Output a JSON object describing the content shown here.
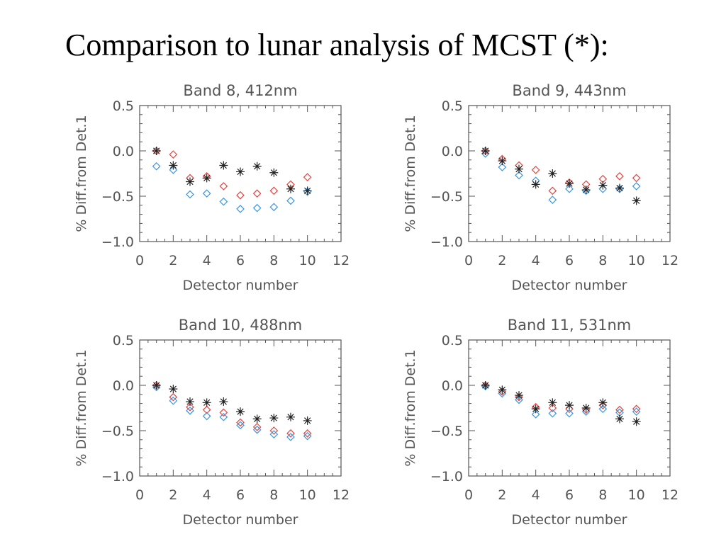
{
  "page": {
    "title": "Comparison to lunar analysis of MCST (*):"
  },
  "style": {
    "axis_color": "#555555",
    "red": "#e8433e",
    "blue": "#3a96e2",
    "star": "#222222"
  },
  "chart_data": [
    {
      "type": "scatter",
      "title": "Band 8, 412nm",
      "xlabel": "Detector number",
      "ylabel": "% Diff.from Det.1",
      "xlim": [
        0,
        12
      ],
      "ylim": [
        -1.0,
        0.5
      ],
      "xticks": [
        "0",
        "2",
        "4",
        "6",
        "8",
        "10",
        "12"
      ],
      "yticks": [
        "0.5",
        "0.0",
        "−0.5",
        "−1.0"
      ],
      "series": [
        {
          "marker": "diamond",
          "color": "#e8433e",
          "x": [
            1,
            2,
            3,
            4,
            5,
            6,
            7,
            8,
            9,
            10
          ],
          "y": [
            0.0,
            -0.04,
            -0.3,
            -0.28,
            -0.39,
            -0.49,
            -0.47,
            -0.44,
            -0.37,
            -0.29
          ]
        },
        {
          "marker": "diamond",
          "color": "#3a96e2",
          "x": [
            1,
            2,
            3,
            4,
            5,
            6,
            7,
            8,
            9,
            10
          ],
          "y": [
            -0.17,
            -0.21,
            -0.48,
            -0.47,
            -0.56,
            -0.64,
            -0.63,
            -0.62,
            -0.55,
            -0.45
          ]
        },
        {
          "marker": "star",
          "color": "#222222",
          "x": [
            1,
            2,
            3,
            4,
            5,
            6,
            7,
            8,
            9,
            10
          ],
          "y": [
            0.0,
            -0.16,
            -0.34,
            -0.3,
            -0.16,
            -0.23,
            -0.17,
            -0.24,
            -0.42,
            -0.44
          ]
        }
      ]
    },
    {
      "type": "scatter",
      "title": "Band 9, 443nm",
      "xlabel": "Detector number",
      "ylabel": "% Diff.from Det.1",
      "xlim": [
        0,
        12
      ],
      "ylim": [
        -1.0,
        0.5
      ],
      "xticks": [
        "0",
        "2",
        "4",
        "6",
        "8",
        "10",
        "12"
      ],
      "yticks": [
        "0.5",
        "0.0",
        "−0.5",
        "−1.0"
      ],
      "series": [
        {
          "marker": "diamond",
          "color": "#e8433e",
          "x": [
            1,
            2,
            3,
            4,
            5,
            6,
            7,
            8,
            9,
            10
          ],
          "y": [
            0.0,
            -0.09,
            -0.16,
            -0.21,
            -0.44,
            -0.35,
            -0.37,
            -0.31,
            -0.28,
            -0.3
          ]
        },
        {
          "marker": "diamond",
          "color": "#3a96e2",
          "x": [
            1,
            2,
            3,
            4,
            5,
            6,
            7,
            8,
            9,
            10
          ],
          "y": [
            -0.03,
            -0.18,
            -0.27,
            -0.33,
            -0.54,
            -0.42,
            -0.44,
            -0.42,
            -0.42,
            -0.39
          ]
        },
        {
          "marker": "star",
          "color": "#222222",
          "x": [
            1,
            2,
            3,
            4,
            5,
            6,
            7,
            8,
            9,
            10
          ],
          "y": [
            0.0,
            -0.11,
            -0.2,
            -0.37,
            -0.25,
            -0.36,
            -0.43,
            -0.38,
            -0.41,
            -0.55
          ]
        }
      ]
    },
    {
      "type": "scatter",
      "title": "Band 10, 488nm",
      "xlabel": "Detector number",
      "ylabel": "% Diff.from Det.1",
      "xlim": [
        0,
        12
      ],
      "ylim": [
        -1.0,
        0.5
      ],
      "xticks": [
        "0",
        "2",
        "4",
        "6",
        "8",
        "10",
        "12"
      ],
      "yticks": [
        "0.5",
        "0.0",
        "−0.5",
        "−1.0"
      ],
      "series": [
        {
          "marker": "diamond",
          "color": "#e8433e",
          "x": [
            1,
            2,
            3,
            4,
            5,
            6,
            7,
            8,
            9,
            10
          ],
          "y": [
            0.0,
            -0.13,
            -0.24,
            -0.27,
            -0.3,
            -0.41,
            -0.46,
            -0.5,
            -0.53,
            -0.53
          ]
        },
        {
          "marker": "diamond",
          "color": "#3a96e2",
          "x": [
            1,
            2,
            3,
            4,
            5,
            6,
            7,
            8,
            9,
            10
          ],
          "y": [
            -0.02,
            -0.17,
            -0.28,
            -0.34,
            -0.35,
            -0.44,
            -0.49,
            -0.54,
            -0.57,
            -0.56
          ]
        },
        {
          "marker": "star",
          "color": "#222222",
          "x": [
            1,
            2,
            3,
            4,
            5,
            6,
            7,
            8,
            9,
            10
          ],
          "y": [
            0.0,
            -0.04,
            -0.18,
            -0.19,
            -0.18,
            -0.29,
            -0.37,
            -0.36,
            -0.35,
            -0.39
          ]
        }
      ]
    },
    {
      "type": "scatter",
      "title": "Band 11, 531nm",
      "xlabel": "Detector number",
      "ylabel": "% Diff.from Det.1",
      "xlim": [
        0,
        12
      ],
      "ylim": [
        -1.0,
        0.5
      ],
      "xticks": [
        "0",
        "2",
        "4",
        "6",
        "8",
        "10",
        "12"
      ],
      "yticks": [
        "0.5",
        "0.0",
        "−0.5",
        "−1.0"
      ],
      "series": [
        {
          "marker": "diamond",
          "color": "#e8433e",
          "x": [
            1,
            2,
            3,
            4,
            5,
            6,
            7,
            8,
            9,
            10
          ],
          "y": [
            0.0,
            -0.07,
            -0.13,
            -0.24,
            -0.25,
            -0.26,
            -0.27,
            -0.22,
            -0.27,
            -0.26
          ]
        },
        {
          "marker": "diamond",
          "color": "#3a96e2",
          "x": [
            1,
            2,
            3,
            4,
            5,
            6,
            7,
            8,
            9,
            10
          ],
          "y": [
            -0.01,
            -0.09,
            -0.16,
            -0.32,
            -0.31,
            -0.31,
            -0.29,
            -0.26,
            -0.3,
            -0.29
          ]
        },
        {
          "marker": "star",
          "color": "#222222",
          "x": [
            1,
            2,
            3,
            4,
            5,
            6,
            7,
            8,
            9,
            10
          ],
          "y": [
            0.0,
            -0.05,
            -0.11,
            -0.26,
            -0.19,
            -0.22,
            -0.25,
            -0.19,
            -0.37,
            -0.4
          ]
        }
      ]
    }
  ]
}
